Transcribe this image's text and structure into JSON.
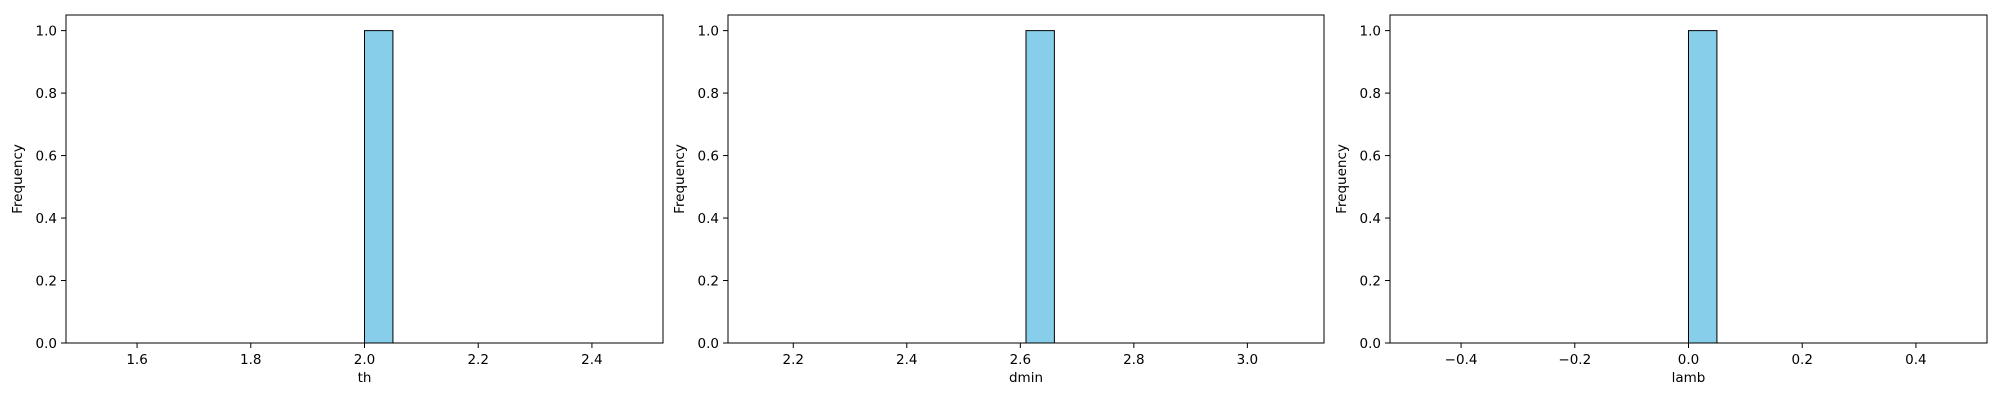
{
  "colors": {
    "bar_fill": "#87ceeb",
    "bar_edge": "#000000",
    "axes": "#000000",
    "background": "#ffffff"
  },
  "chart_data": [
    {
      "type": "bar",
      "title": "",
      "xlabel": "th",
      "ylabel": "Frequency",
      "xlim": [
        1.475,
        2.525
      ],
      "ylim": [
        0.0,
        1.05
      ],
      "xticks": [
        1.6,
        1.8,
        2.0,
        2.2,
        2.4
      ],
      "xtick_labels": [
        "1.6",
        "1.8",
        "2.0",
        "2.2",
        "2.4"
      ],
      "yticks": [
        0.0,
        0.2,
        0.4,
        0.6,
        0.8,
        1.0
      ],
      "ytick_labels": [
        "0.0",
        "0.2",
        "0.4",
        "0.6",
        "0.8",
        "1.0"
      ],
      "grid": false,
      "bins": {
        "start": 1.5,
        "width": 0.05,
        "counts": [
          0,
          0,
          0,
          0,
          0,
          0,
          0,
          0,
          0,
          0,
          1,
          0,
          0,
          0,
          0,
          0,
          0,
          0,
          0,
          0
        ]
      }
    },
    {
      "type": "bar",
      "title": "",
      "xlabel": "dmin",
      "ylabel": "Frequency",
      "xlim": [
        2.085,
        3.135
      ],
      "ylim": [
        0.0,
        1.05
      ],
      "xticks": [
        2.2,
        2.4,
        2.6,
        2.8,
        3.0
      ],
      "xtick_labels": [
        "2.2",
        "2.4",
        "2.6",
        "2.8",
        "3.0"
      ],
      "yticks": [
        0.0,
        0.2,
        0.4,
        0.6,
        0.8,
        1.0
      ],
      "ytick_labels": [
        "0.0",
        "0.2",
        "0.4",
        "0.6",
        "0.8",
        "1.0"
      ],
      "grid": false,
      "bins": {
        "start": 2.11,
        "width": 0.05,
        "counts": [
          0,
          0,
          0,
          0,
          0,
          0,
          0,
          0,
          0,
          0,
          1,
          0,
          0,
          0,
          0,
          0,
          0,
          0,
          0,
          0
        ]
      }
    },
    {
      "type": "bar",
      "title": "",
      "xlabel": "lamb",
      "ylabel": "Frequency",
      "xlim": [
        -0.525,
        0.525
      ],
      "ylim": [
        0.0,
        1.05
      ],
      "xticks": [
        -0.4,
        -0.2,
        0.0,
        0.2,
        0.4
      ],
      "xtick_labels": [
        "−0.4",
        "−0.2",
        "0.0",
        "0.2",
        "0.4"
      ],
      "yticks": [
        0.0,
        0.2,
        0.4,
        0.6,
        0.8,
        1.0
      ],
      "ytick_labels": [
        "0.0",
        "0.2",
        "0.4",
        "0.6",
        "0.8",
        "1.0"
      ],
      "grid": false,
      "bins": {
        "start": -0.5,
        "width": 0.05,
        "counts": [
          0,
          0,
          0,
          0,
          0,
          0,
          0,
          0,
          0,
          0,
          1,
          0,
          0,
          0,
          0,
          0,
          0,
          0,
          0,
          0
        ]
      }
    }
  ]
}
